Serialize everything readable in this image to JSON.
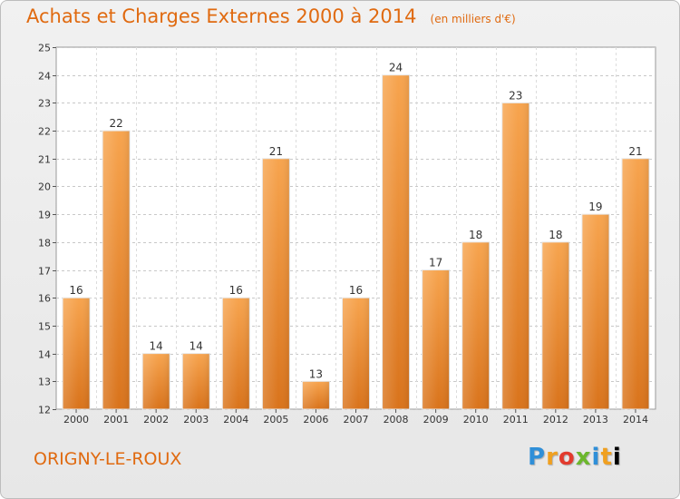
{
  "header": {
    "title": "Achats et Charges Externes 2000 à 2014",
    "subtitle": "(en milliers d'€)"
  },
  "footer": {
    "commune": "ORIGNY-LE-ROUX",
    "logo_text": "Proxiti"
  },
  "colors": {
    "title": "#e06a10",
    "bar_light": "#f7a44e",
    "bar_dark": "#d9731b",
    "grid": "#c8c8c8"
  },
  "chart_data": {
    "type": "bar",
    "title": "Achats et Charges Externes 2000 à 2014",
    "subtitle": "(en milliers d'€)",
    "xlabel": "",
    "ylabel": "",
    "categories": [
      "2000",
      "2001",
      "2002",
      "2003",
      "2004",
      "2005",
      "2006",
      "2007",
      "2008",
      "2009",
      "2010",
      "2011",
      "2012",
      "2013",
      "2014"
    ],
    "values": [
      16,
      22,
      14,
      14,
      16,
      21,
      13,
      16,
      24,
      17,
      18,
      23,
      18,
      19,
      21
    ],
    "ylim": [
      12,
      25
    ],
    "yticks": [
      12,
      13,
      14,
      15,
      16,
      17,
      18,
      19,
      20,
      21,
      22,
      23,
      24,
      25
    ],
    "grid": true,
    "legend": "none"
  }
}
